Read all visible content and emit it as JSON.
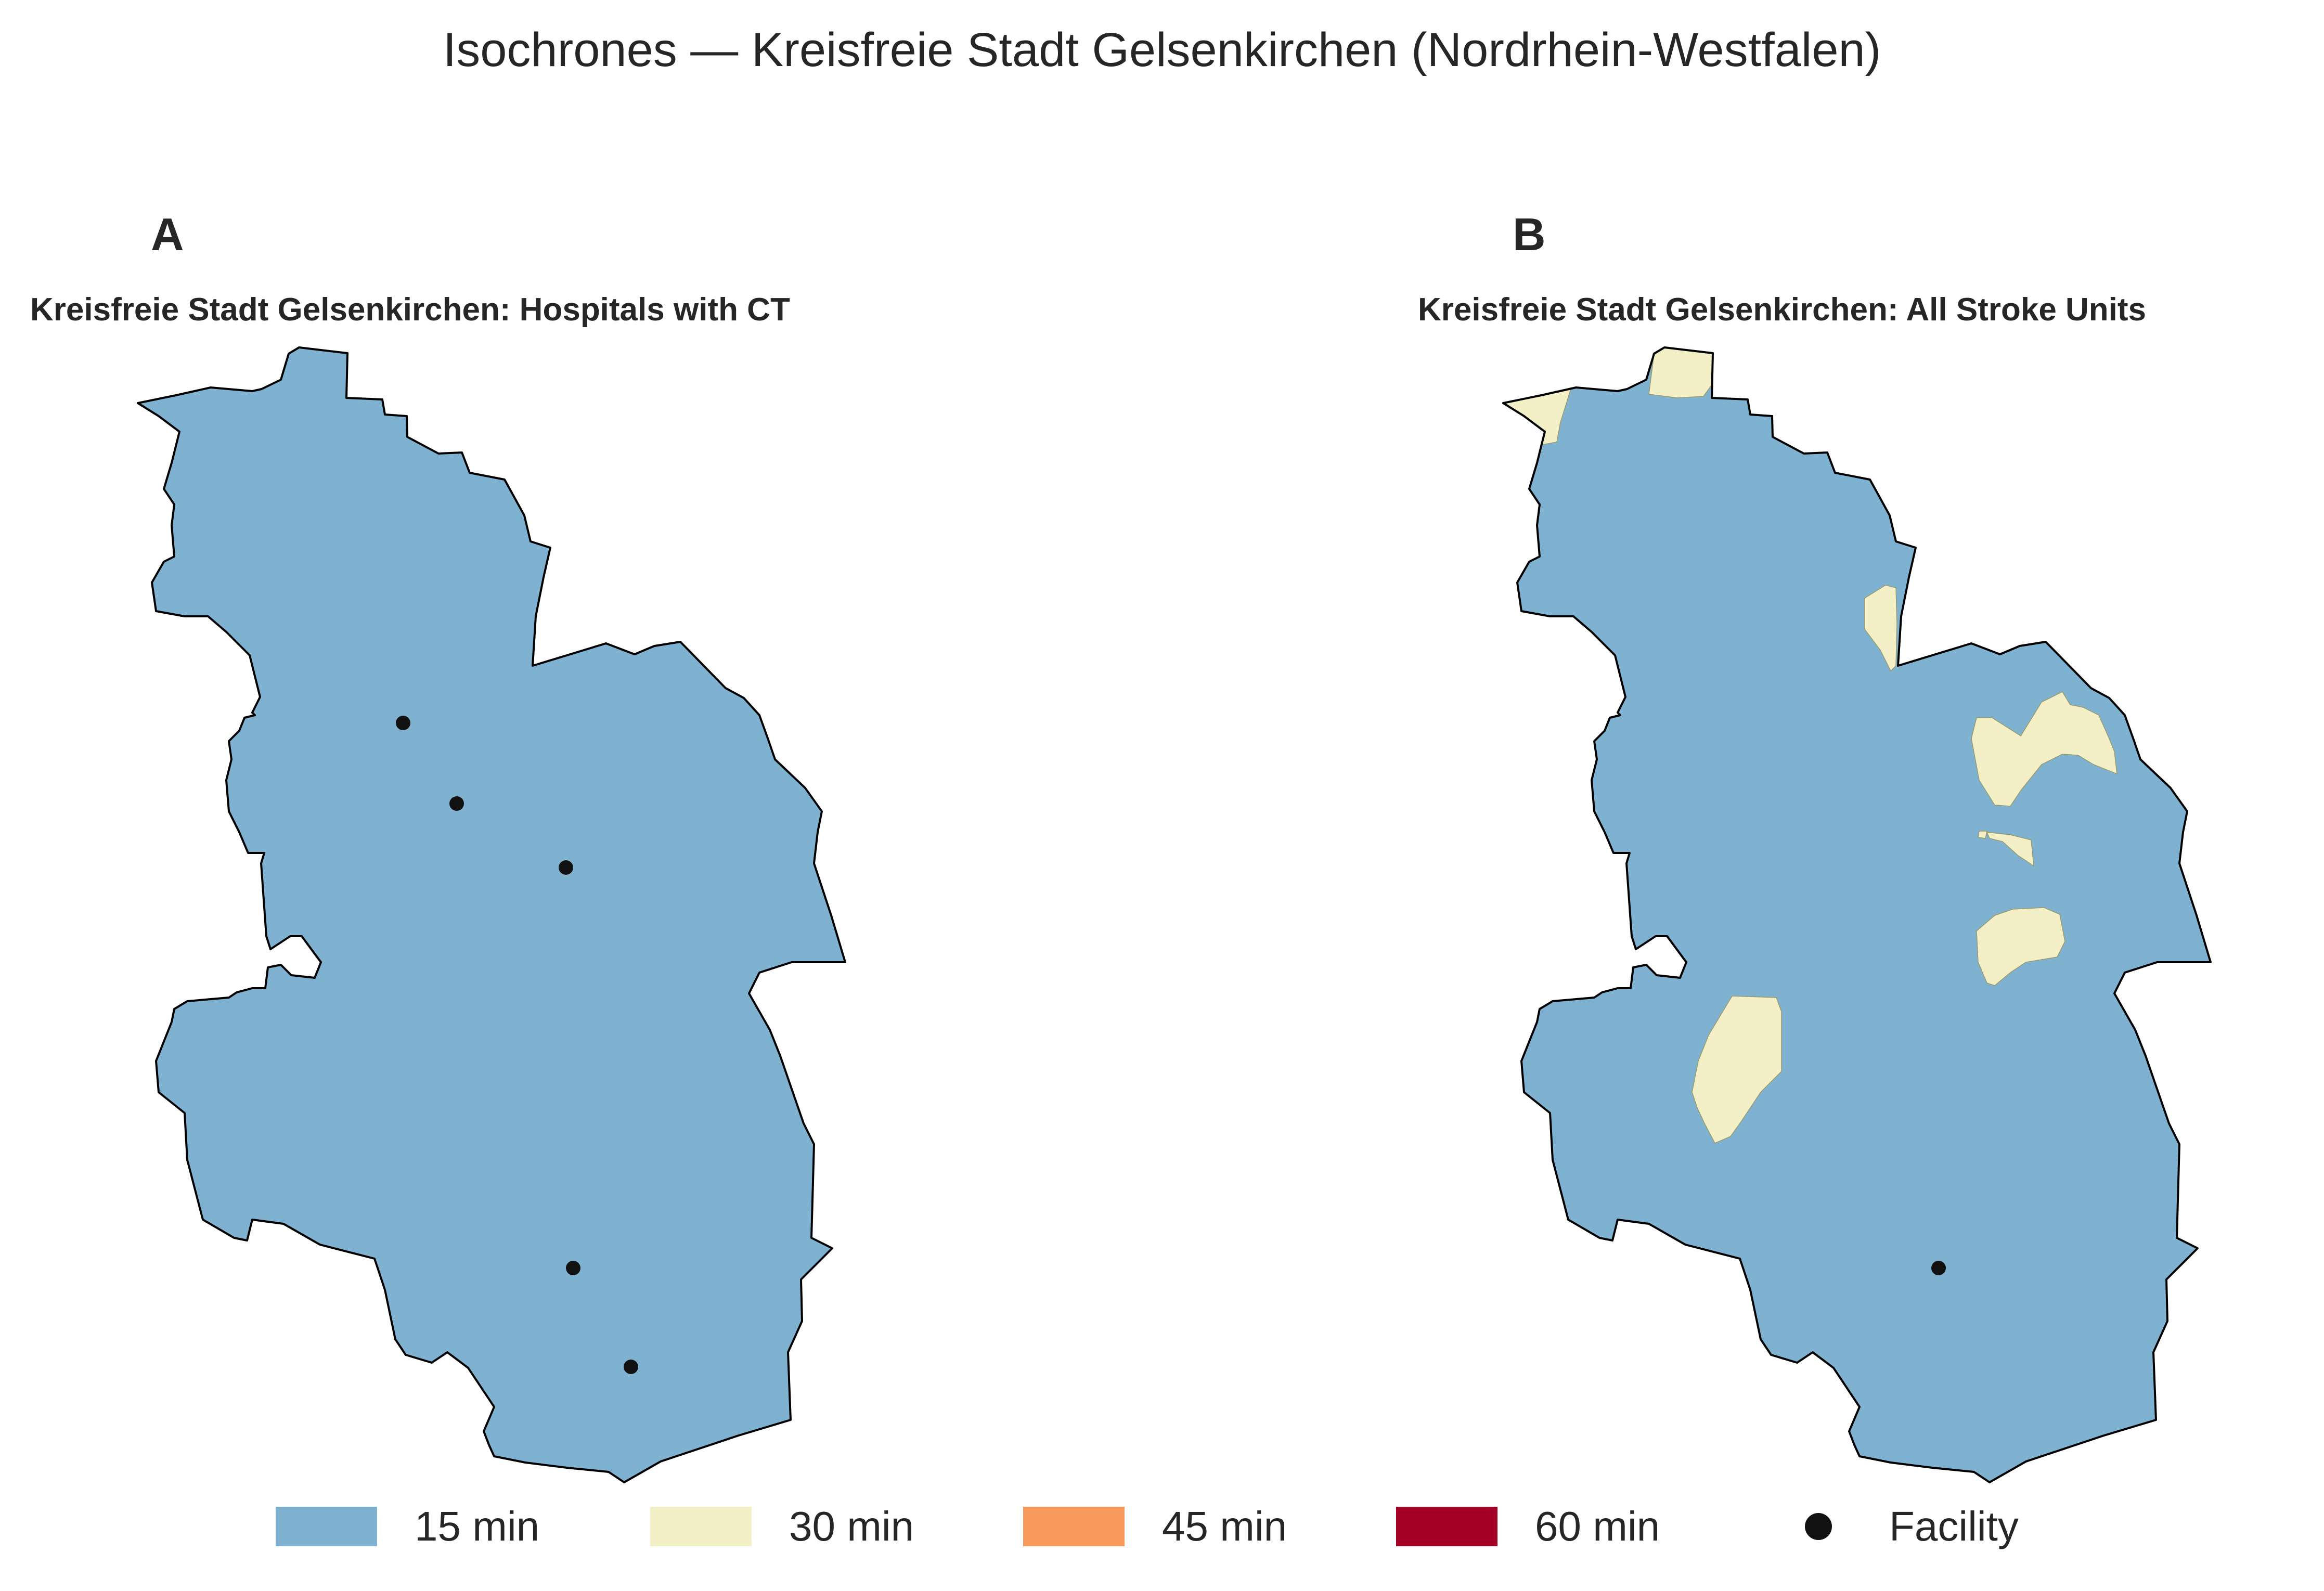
{
  "title": "Isochrones — Kreisfreie Stadt Gelsenkirchen (Nordrhein-Westfalen)",
  "panels": [
    {
      "letter": "A",
      "title": "Kreisfreie Stadt Gelsenkirchen: Hospitals with CT"
    },
    {
      "letter": "B",
      "title": "Kreisfreie Stadt Gelsenkirchen: All Stroke Units"
    }
  ],
  "legend": [
    {
      "label": "15 min",
      "color": "#7fb1d0"
    },
    {
      "label": "30 min",
      "color": "#f3f0c8"
    },
    {
      "label": "45 min",
      "color": "#f89a5c"
    },
    {
      "label": "60 min",
      "color": "#a50026"
    },
    {
      "label": "Facility",
      "color": "#111111"
    }
  ],
  "colors": {
    "outline": "#000000",
    "zone15": "#7fb1d0",
    "zone30": "#f3f0c8"
  }
}
